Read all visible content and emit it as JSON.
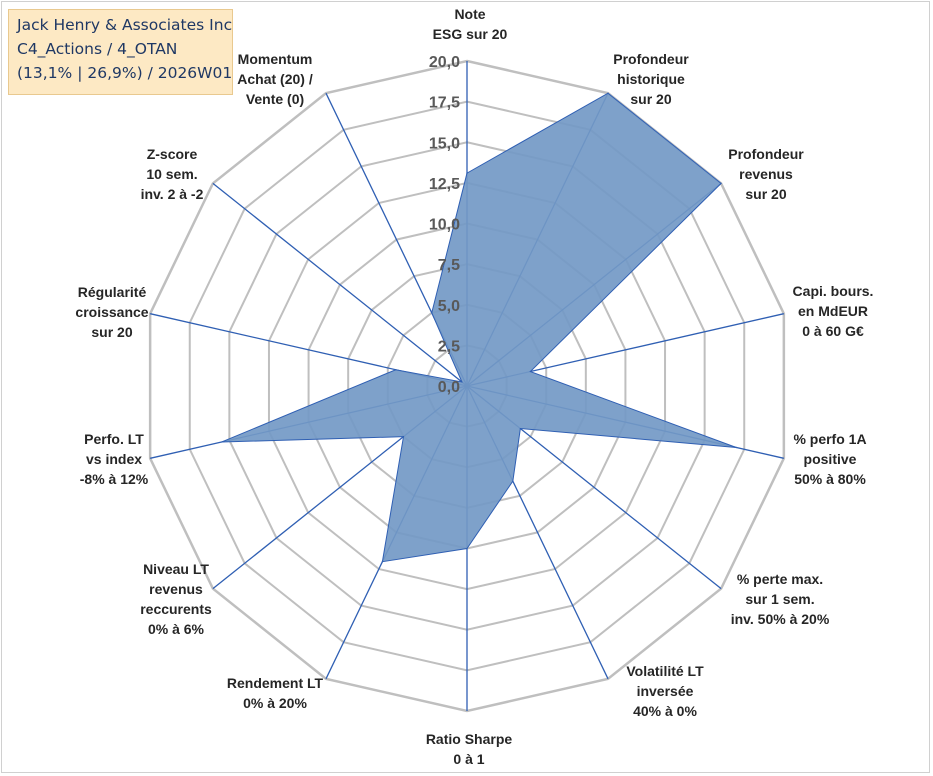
{
  "title_box": {
    "line1": "Jack Henry & Associates Inc",
    "line2": "C4_Actions / 4_OTAN",
    "line3": "(13,1% | 26,9%) / 2026W01"
  },
  "colors": {
    "fill": "#7399c6",
    "line": "#2f5fb3",
    "grid": "#bfbfbf"
  },
  "chart_data": {
    "type": "radar",
    "rmin": 0,
    "rmax": 20,
    "ticks": [
      "0,0",
      "2,5",
      "5,0",
      "7,5",
      "10,0",
      "12,5",
      "15,0",
      "17,5",
      "20,0"
    ],
    "axes": [
      {
        "label": [
          "Note",
          "ESG sur 20"
        ],
        "value": 13.1
      },
      {
        "label": [
          "Profondeur",
          "historique",
          "sur 20"
        ],
        "value": 20
      },
      {
        "label": [
          "Profondeur",
          "revenus",
          "sur 20"
        ],
        "value": 20
      },
      {
        "label": [
          "Capi. bours.",
          "en MdEUR",
          "0 à 60 G€"
        ],
        "value": 4.0
      },
      {
        "label": [
          "% perfo 1A",
          "positive",
          "50% à 80%"
        ],
        "value": 17.0
      },
      {
        "label": [
          "% perte max.",
          "sur 1 sem.",
          "inv. 50% à 20%"
        ],
        "value": 4.2
      },
      {
        "label": [
          "Volatilité LT",
          "inversée",
          "40% à 0%"
        ],
        "value": 6.5
      },
      {
        "label": [
          "Ratio Sharpe",
          "0 à 1"
        ],
        "value": 10.0
      },
      {
        "label": [
          "Rendement LT",
          "0% à 20%"
        ],
        "value": 12.0
      },
      {
        "label": [
          "Niveau LT",
          "revenus",
          "reccurents",
          "0% à 6%"
        ],
        "value": 5.0
      },
      {
        "label": [
          "Perfo. LT",
          "vs index",
          "-8% à 12%"
        ],
        "value": 15.5
      },
      {
        "label": [
          "Régularité",
          "croissance",
          "sur 20"
        ],
        "value": 4.5
      },
      {
        "label": [
          "Z-score",
          "10 sem.",
          "inv. 2 à -2"
        ],
        "value": 0.4
      },
      {
        "label": [
          "Momentum",
          "Achat (20) /",
          "Vente (0)"
        ],
        "value": 5.0
      }
    ]
  }
}
